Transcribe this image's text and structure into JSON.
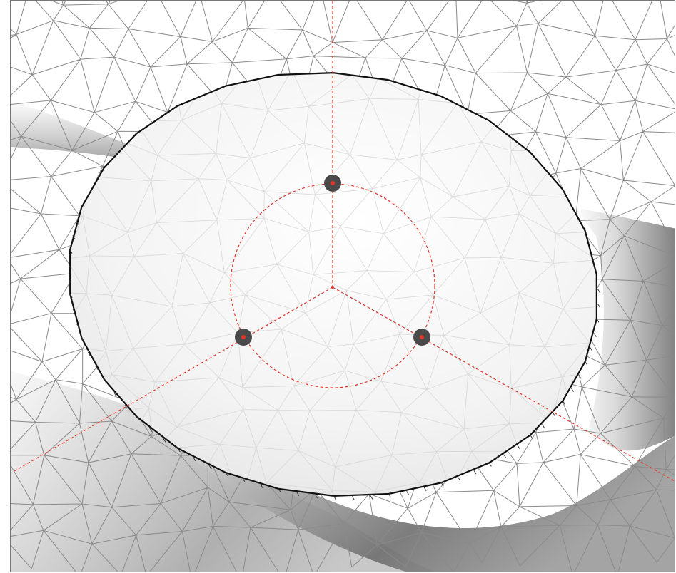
{
  "scene": {
    "background": "#ffffff",
    "frame_color": "#777777",
    "mesh_color": "#8a8a8a",
    "disc_fill": "#f6f6f6",
    "disc_outline_color": "#111111",
    "guide_color": "#e0372c",
    "handle_color": "#4a4a4a",
    "handle_center_color": "#e0372c",
    "handle_count": 3,
    "guide_style": "dashed"
  },
  "icons": {
    "handle": "control-point-icon",
    "center": "pivot-icon"
  }
}
